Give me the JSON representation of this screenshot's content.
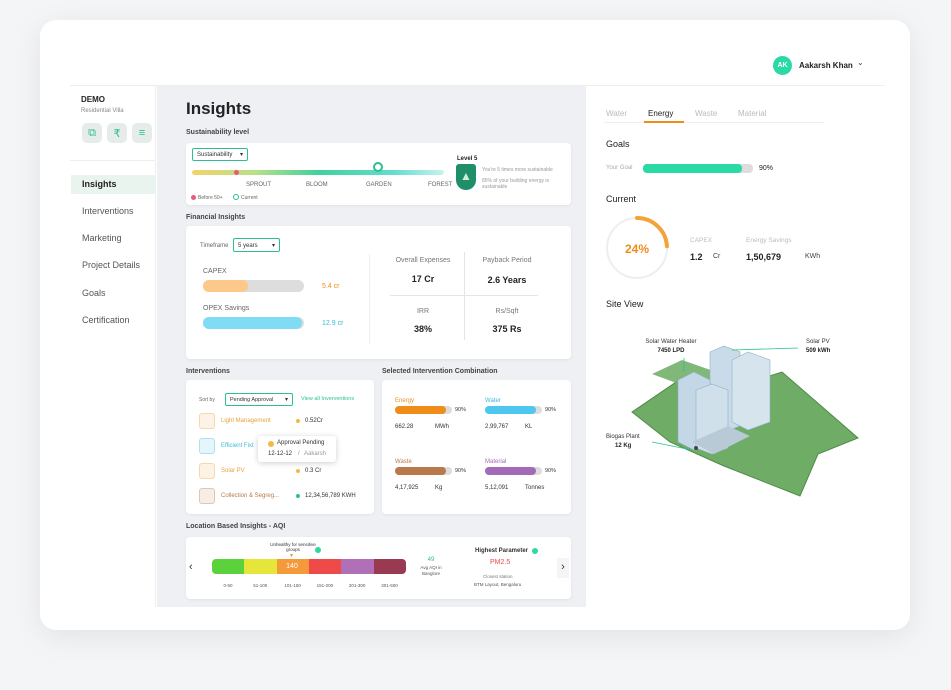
{
  "user": {
    "initials": "AK",
    "name": "Aakarsh Khan"
  },
  "project": {
    "name": "DEMO",
    "type": "Residential Villa"
  },
  "sidebar": {
    "items": [
      {
        "label": "Insights"
      },
      {
        "label": "Interventions"
      },
      {
        "label": "Marketing"
      },
      {
        "label": "Project Details"
      },
      {
        "label": "Goals"
      },
      {
        "label": "Certification"
      }
    ]
  },
  "page_title": "Insights",
  "sustainability": {
    "section_title": "Sustainability level",
    "dropdown": "Sustainability",
    "stages": [
      "SPROUT",
      "BLOOM",
      "GARDEN",
      "FOREST"
    ],
    "level": "Level 5",
    "desc1": "You're 5 times more sustainable",
    "desc2": "85% of your building energy is sustainable",
    "legend_before": "Before 50+",
    "legend_current": "Current",
    "current_fraction": 0.74
  },
  "financial": {
    "section_title": "Financial Insights",
    "timeframe_label": "Timeframe",
    "timeframe_value": "5 years",
    "capex_label": "CAPEX",
    "capex_value": "5.4 cr",
    "capex_fraction": 0.45,
    "opex_label": "OPEX Savings",
    "opex_value": "12.9 cr",
    "opex_fraction": 0.98,
    "metrics": [
      {
        "label": "Overall Expenses",
        "value": "17 Cr"
      },
      {
        "label": "Payback Period",
        "value": "2.6 Years"
      },
      {
        "label": "IRR",
        "value": "38%"
      },
      {
        "label": "Rs/Sqft",
        "value": "375 Rs"
      }
    ]
  },
  "interventions": {
    "section_title": "Interventions",
    "sort_label": "Sort by",
    "sort_value": "Pending Approval",
    "view_all": "View all Inverventions",
    "items": [
      {
        "name": "Light Management",
        "value": "0.52Cr",
        "color": "#e8a13a"
      },
      {
        "name": "Efficient Fixt",
        "value": "5 kL",
        "color": "#3bb8d9"
      },
      {
        "name": "Solar PV",
        "value": "0.3 Cr",
        "color": "#e8a13a"
      },
      {
        "name": "Collection & Segreg...",
        "value": "12,34,56,789 KWH",
        "color": "#b87a4b"
      }
    ],
    "tooltip_title": "Approval Pending",
    "tooltip_date": "12-12-12",
    "tooltip_user": "Aakarsh"
  },
  "combination": {
    "section_title": "Selected Intervention Combination",
    "items": [
      {
        "name": "Energy",
        "pct": "90%",
        "value": "662.28",
        "unit": "MWh",
        "color": "#f08c1a",
        "name_color": "#f08c1a",
        "fraction": 0.9
      },
      {
        "name": "Water",
        "pct": "90%",
        "value": "2,99,767",
        "unit": "KL",
        "color": "#4dc7ee",
        "name_color": "#3bb8d9",
        "fraction": 0.9
      },
      {
        "name": "Waste",
        "pct": "90%",
        "value": "4,17,925",
        "unit": "Kg",
        "color": "#b87a4b",
        "name_color": "#b87a4b",
        "fraction": 0.9
      },
      {
        "name": "Material",
        "pct": "90%",
        "value": "5,12,091",
        "unit": "Tonnes",
        "color": "#a26bb8",
        "name_color": "#a26bb8",
        "fraction": 0.9
      }
    ]
  },
  "aqi": {
    "section_title": "Location Based Insights - AQI",
    "callout": "Unhealthy for sensitive groups",
    "current_value": "140",
    "ranges": [
      "0-50",
      "51-100",
      "101-150",
      "151-200",
      "201-300",
      "301-500"
    ],
    "colors": [
      "#5bd23c",
      "#e6e63a",
      "#f59a3a",
      "#ee4a4a",
      "#b070b8",
      "#9a3a52"
    ],
    "avg_value": "49",
    "avg_label1": "Avg AQI in",
    "avg_label2": "Banglore",
    "highest_label": "Highest Parameter",
    "highest_value": "PM2.5",
    "station_label": "Closest station",
    "station_value": "BTM Layout, Bengaluru"
  },
  "right": {
    "tabs": [
      "Water",
      "Energy",
      "Waste",
      "Material"
    ],
    "active_tab": "Energy",
    "goals_title": "Goals",
    "your_goal_label": "Your Goal",
    "your_goal_value": "90%",
    "goal_fraction": 0.9,
    "current_title": "Current",
    "current_pct": "24%",
    "current_fraction": 0.24,
    "capex_label": "CAPEX",
    "capex_value": "1.2",
    "capex_unit": "Cr",
    "savings_label": "Energy Savings",
    "savings_value": "1,50,679",
    "savings_unit": "KWh",
    "site_title": "Site View",
    "solar_water_label": "Solar Water Heater",
    "solar_water_value": "7450 LPD",
    "solar_pv_label": "Solar PV",
    "solar_pv_value": "509 kWh",
    "biogas_label": "Biogas Plant",
    "biogas_value": "12 Kg",
    "accent": "#2bd9a5"
  }
}
